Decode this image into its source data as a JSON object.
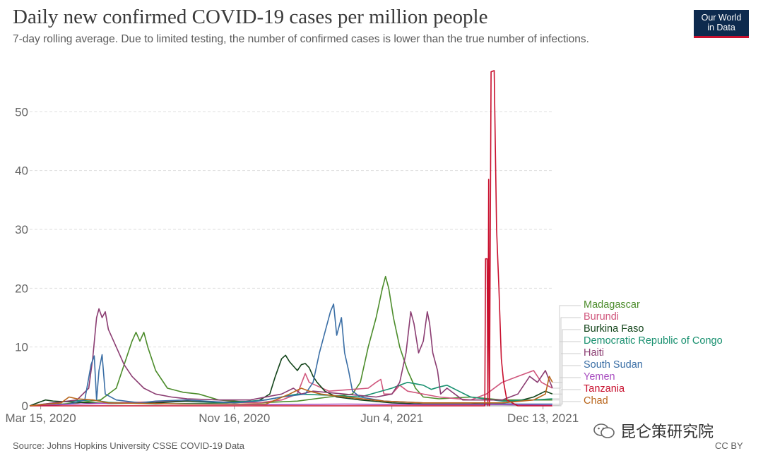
{
  "header": {
    "title": "Daily new confirmed COVID-19 cases per million people",
    "subtitle": "7-day rolling average. Due to limited testing, the number of confirmed cases is lower than the true number of infections."
  },
  "logo": {
    "line1": "Our World",
    "line2": "in Data"
  },
  "footer": {
    "source": "Source: Johns Hopkins University CSSE COVID-19 Data",
    "license": "CC BY"
  },
  "watermark": {
    "text": "昆仑策研究院"
  },
  "chart_data": {
    "type": "line",
    "title": "Daily new confirmed COVID-19 cases per million people",
    "xlabel": "",
    "ylabel": "",
    "x_range": [
      0,
      664
    ],
    "x_unit": "days since 2020-03-01",
    "ylim": [
      0,
      57
    ],
    "yticks": [
      0,
      10,
      20,
      30,
      40,
      50
    ],
    "xticks": [
      {
        "x": 14,
        "label": "Mar 15, 2020"
      },
      {
        "x": 260,
        "label": "Nov 16, 2020"
      },
      {
        "x": 460,
        "label": "Jun 4, 2021"
      },
      {
        "x": 652,
        "label": "Dec 13, 2021"
      }
    ],
    "grid": "horizontal dashed",
    "series": [
      {
        "name": "Madagascar",
        "color": "#4c8c2b",
        "points": [
          [
            0,
            0
          ],
          [
            40,
            0.3
          ],
          [
            60,
            0.5
          ],
          [
            90,
            1
          ],
          [
            110,
            3
          ],
          [
            120,
            7
          ],
          [
            130,
            11
          ],
          [
            135,
            12.5
          ],
          [
            140,
            11
          ],
          [
            145,
            12.5
          ],
          [
            150,
            10
          ],
          [
            160,
            6
          ],
          [
            175,
            3
          ],
          [
            195,
            2.3
          ],
          [
            215,
            2
          ],
          [
            240,
            1
          ],
          [
            290,
            0.5
          ],
          [
            340,
            0.8
          ],
          [
            380,
            1.5
          ],
          [
            410,
            2
          ],
          [
            420,
            4
          ],
          [
            430,
            10
          ],
          [
            440,
            15
          ],
          [
            448,
            20
          ],
          [
            452,
            22
          ],
          [
            456,
            20
          ],
          [
            462,
            15
          ],
          [
            470,
            10
          ],
          [
            480,
            6
          ],
          [
            490,
            3
          ],
          [
            500,
            1.5
          ],
          [
            520,
            1.2
          ],
          [
            560,
            1.5
          ],
          [
            600,
            1
          ],
          [
            640,
            1
          ],
          [
            664,
            1
          ]
        ]
      },
      {
        "name": "Burundi",
        "color": "#d0577d",
        "points": [
          [
            0,
            0
          ],
          [
            100,
            0.5
          ],
          [
            200,
            0.8
          ],
          [
            290,
            0.5
          ],
          [
            320,
            1
          ],
          [
            340,
            2
          ],
          [
            350,
            5.5
          ],
          [
            355,
            4
          ],
          [
            380,
            2.5
          ],
          [
            430,
            3
          ],
          [
            440,
            4
          ],
          [
            446,
            4.5
          ],
          [
            450,
            2
          ],
          [
            460,
            2
          ],
          [
            470,
            3.5
          ],
          [
            480,
            2.5
          ],
          [
            520,
            1.5
          ],
          [
            560,
            1
          ],
          [
            580,
            2
          ],
          [
            600,
            4
          ],
          [
            620,
            5
          ],
          [
            640,
            6
          ],
          [
            650,
            4
          ],
          [
            664,
            3
          ]
        ]
      },
      {
        "name": "Burkina Faso",
        "color": "#14451b",
        "points": [
          [
            0,
            0
          ],
          [
            10,
            0.5
          ],
          [
            20,
            1
          ],
          [
            30,
            0.8
          ],
          [
            60,
            0.6
          ],
          [
            100,
            0.4
          ],
          [
            160,
            0.5
          ],
          [
            200,
            0.8
          ],
          [
            240,
            0.6
          ],
          [
            290,
            0.8
          ],
          [
            305,
            2
          ],
          [
            312,
            5
          ],
          [
            320,
            8
          ],
          [
            325,
            8.6
          ],
          [
            330,
            7.5
          ],
          [
            340,
            6
          ],
          [
            345,
            7
          ],
          [
            350,
            7.2
          ],
          [
            355,
            6.5
          ],
          [
            360,
            5
          ],
          [
            365,
            4
          ],
          [
            375,
            2.5
          ],
          [
            390,
            1.5
          ],
          [
            420,
            1
          ],
          [
            460,
            0.5
          ],
          [
            500,
            0.3
          ],
          [
            560,
            0.3
          ],
          [
            600,
            0.5
          ],
          [
            620,
            0.8
          ],
          [
            640,
            1.5
          ],
          [
            655,
            2.5
          ],
          [
            664,
            2
          ]
        ]
      },
      {
        "name": "Democratic Republic of Congo",
        "color": "#18906f",
        "points": [
          [
            0,
            0
          ],
          [
            50,
            0.8
          ],
          [
            80,
            1
          ],
          [
            100,
            0.6
          ],
          [
            160,
            0.3
          ],
          [
            250,
            0.5
          ],
          [
            300,
            1
          ],
          [
            340,
            2
          ],
          [
            380,
            1.8
          ],
          [
            420,
            1.5
          ],
          [
            460,
            3
          ],
          [
            470,
            3.5
          ],
          [
            480,
            4
          ],
          [
            500,
            3.5
          ],
          [
            510,
            2.8
          ],
          [
            520,
            3.2
          ],
          [
            530,
            3.5
          ],
          [
            545,
            2.5
          ],
          [
            560,
            1.5
          ],
          [
            600,
            0.8
          ],
          [
            640,
            1
          ],
          [
            664,
            1.2
          ]
        ]
      },
      {
        "name": "Haiti",
        "color": "#8b3d72",
        "points": [
          [
            0,
            0
          ],
          [
            60,
            1
          ],
          [
            75,
            3
          ],
          [
            80,
            8
          ],
          [
            85,
            15
          ],
          [
            88,
            16.5
          ],
          [
            92,
            15
          ],
          [
            96,
            16
          ],
          [
            100,
            13
          ],
          [
            110,
            10
          ],
          [
            120,
            7
          ],
          [
            130,
            5
          ],
          [
            145,
            3
          ],
          [
            160,
            2
          ],
          [
            180,
            1.5
          ],
          [
            200,
            1.2
          ],
          [
            240,
            1
          ],
          [
            280,
            1
          ],
          [
            320,
            2
          ],
          [
            335,
            3
          ],
          [
            345,
            2
          ],
          [
            360,
            2.5
          ],
          [
            400,
            2
          ],
          [
            440,
            1.5
          ],
          [
            460,
            2
          ],
          [
            470,
            4
          ],
          [
            478,
            9
          ],
          [
            484,
            16
          ],
          [
            488,
            14
          ],
          [
            494,
            9
          ],
          [
            500,
            11
          ],
          [
            505,
            16
          ],
          [
            508,
            14
          ],
          [
            512,
            9
          ],
          [
            518,
            6
          ],
          [
            522,
            2
          ],
          [
            530,
            3
          ],
          [
            550,
            1
          ],
          [
            600,
            1
          ],
          [
            620,
            2
          ],
          [
            635,
            5
          ],
          [
            645,
            4
          ],
          [
            655,
            6
          ],
          [
            664,
            3
          ]
        ]
      },
      {
        "name": "South Sudan",
        "color": "#3a6ea5",
        "points": [
          [
            0,
            0
          ],
          [
            50,
            0.3
          ],
          [
            70,
            1
          ],
          [
            78,
            7
          ],
          [
            82,
            8.5
          ],
          [
            85,
            1
          ],
          [
            88,
            6
          ],
          [
            92,
            8.7
          ],
          [
            96,
            2
          ],
          [
            110,
            1
          ],
          [
            140,
            0.5
          ],
          [
            160,
            0.8
          ],
          [
            200,
            1
          ],
          [
            260,
            0.5
          ],
          [
            290,
            0.8
          ],
          [
            320,
            1.5
          ],
          [
            350,
            2
          ],
          [
            360,
            4
          ],
          [
            368,
            9
          ],
          [
            376,
            13
          ],
          [
            382,
            16
          ],
          [
            386,
            17.3
          ],
          [
            390,
            12
          ],
          [
            396,
            15
          ],
          [
            400,
            9
          ],
          [
            405,
            6
          ],
          [
            410,
            2.5
          ],
          [
            420,
            1.5
          ],
          [
            450,
            0.8
          ],
          [
            500,
            0.5
          ],
          [
            560,
            0.5
          ],
          [
            620,
            0.3
          ],
          [
            664,
            0.3
          ]
        ]
      },
      {
        "name": "Yemen",
        "color": "#a84ec0",
        "points": [
          [
            0,
            0
          ],
          [
            60,
            0.3
          ],
          [
            120,
            0.5
          ],
          [
            180,
            0.3
          ],
          [
            300,
            0.2
          ],
          [
            400,
            0.3
          ],
          [
            500,
            0.2
          ],
          [
            600,
            0.2
          ],
          [
            664,
            0.1
          ]
        ]
      },
      {
        "name": "Tanzania",
        "color": "#c8102e",
        "points": [
          [
            0,
            0
          ],
          [
            300,
            0
          ],
          [
            540,
            0
          ],
          [
            560,
            0
          ],
          [
            578,
            0
          ],
          [
            579,
            25
          ],
          [
            581,
            25
          ],
          [
            582,
            0
          ],
          [
            583,
            38.5
          ],
          [
            584,
            0
          ],
          [
            586,
            56.8
          ],
          [
            590,
            57
          ],
          [
            593,
            30
          ],
          [
            596,
            20
          ],
          [
            599,
            8
          ],
          [
            602,
            4
          ],
          [
            606,
            1
          ],
          [
            620,
            0
          ],
          [
            664,
            0
          ]
        ]
      },
      {
        "name": "Chad",
        "color": "#b8651b",
        "points": [
          [
            0,
            0
          ],
          [
            40,
            0.5
          ],
          [
            50,
            1.5
          ],
          [
            60,
            1.2
          ],
          [
            80,
            1
          ],
          [
            100,
            0.5
          ],
          [
            200,
            0.3
          ],
          [
            300,
            0.3
          ],
          [
            330,
            2
          ],
          [
            345,
            3
          ],
          [
            355,
            2.5
          ],
          [
            370,
            2
          ],
          [
            400,
            1.5
          ],
          [
            450,
            0.8
          ],
          [
            500,
            0.5
          ],
          [
            600,
            0.5
          ],
          [
            640,
            1
          ],
          [
            655,
            2
          ],
          [
            660,
            5
          ],
          [
            664,
            4
          ]
        ]
      }
    ],
    "legend_position": "right"
  }
}
